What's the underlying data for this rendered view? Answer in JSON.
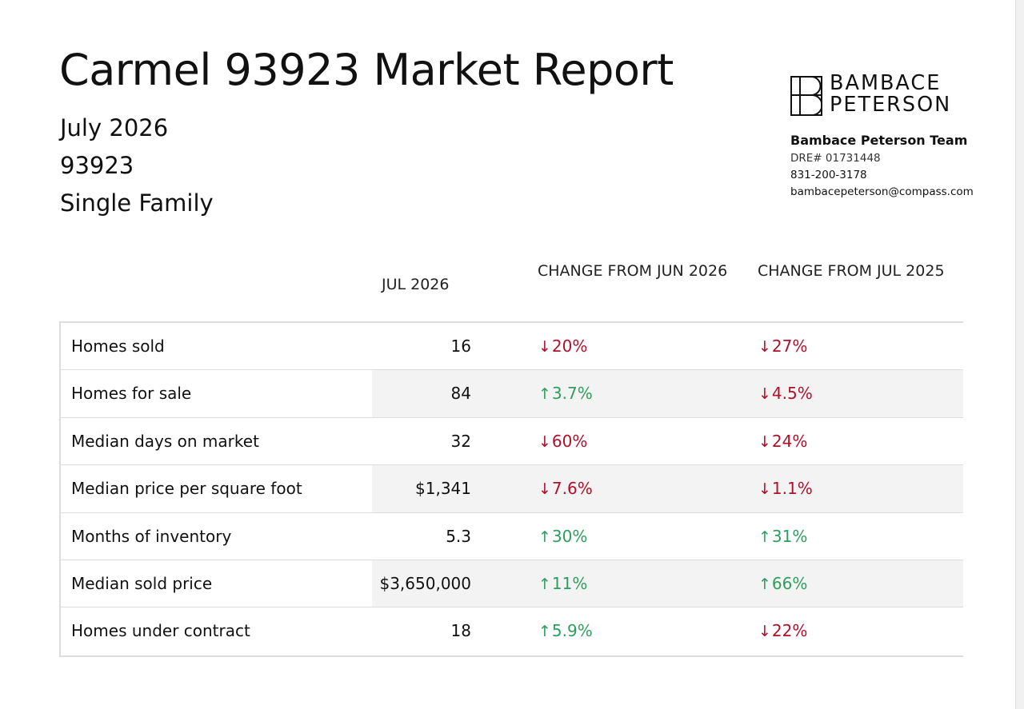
{
  "report": {
    "title": "Carmel 93923 Market Report",
    "period": "July 2026",
    "zip": "93923",
    "property_type": "Single Family"
  },
  "brand": {
    "logo_line1": "BAMBACE",
    "logo_line2": "PETERSON",
    "team_name": "Bambace Peterson Team",
    "dre": "DRE# 01731448",
    "phone": "831-200-3178",
    "email": "bambacepeterson@compass.com"
  },
  "table": {
    "headers": [
      "JUL 2026",
      "CHANGE FROM JUN 2026",
      "CHANGE FROM JUL 2025"
    ],
    "rows": [
      {
        "label": "Homes sold",
        "value": "16",
        "change_month": "20%",
        "change_month_dir": "down",
        "change_year": "27%",
        "change_year_dir": "down"
      },
      {
        "label": "Homes for sale",
        "value": "84",
        "change_month": "3.7%",
        "change_month_dir": "up",
        "change_year": "4.5%",
        "change_year_dir": "down"
      },
      {
        "label": "Median days on market",
        "value": "32",
        "change_month": "60%",
        "change_month_dir": "down",
        "change_year": "24%",
        "change_year_dir": "down"
      },
      {
        "label": "Median price per square foot",
        "value": "$1,341",
        "change_month": "7.6%",
        "change_month_dir": "down",
        "change_year": "1.1%",
        "change_year_dir": "down"
      },
      {
        "label": "Months of inventory",
        "value": "5.3",
        "change_month": "30%",
        "change_month_dir": "up",
        "change_year": "31%",
        "change_year_dir": "up"
      },
      {
        "label": "Median sold price",
        "value": "$3,650,000",
        "change_month": "11%",
        "change_month_dir": "up",
        "change_year": "66%",
        "change_year_dir": "up"
      },
      {
        "label": "Homes under contract",
        "value": "18",
        "change_month": "5.9%",
        "change_month_dir": "up",
        "change_year": "22%",
        "change_year_dir": "down"
      }
    ]
  },
  "colors": {
    "up": "#2e9e5e",
    "down": "#b0102a",
    "row_shade": "#f3f3f3",
    "border": "#dcdcdc"
  },
  "icons": {
    "up": "arrow-up-icon",
    "down": "arrow-down-icon"
  }
}
